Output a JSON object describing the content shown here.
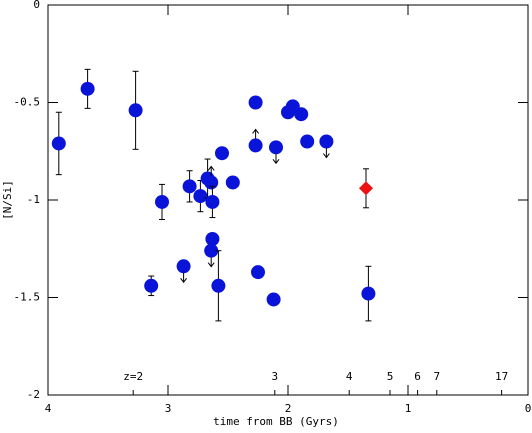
{
  "chart_data": {
    "type": "scatter",
    "xlabel": "time from BB (Gyrs)",
    "ylabel": "[N/Si]",
    "xlim": [
      4,
      0
    ],
    "ylim": [
      -2,
      0
    ],
    "xticks": [
      4,
      3,
      2,
      1,
      0
    ],
    "yticks": [
      0,
      -0.5,
      -1,
      -1.5,
      -2
    ],
    "z_labels": [
      {
        "label": "z=2",
        "x": 3.29
      },
      {
        "label": "3",
        "x": 2.11
      },
      {
        "label": "4",
        "x": 1.49
      },
      {
        "label": "5",
        "x": 1.15
      },
      {
        "label": "6",
        "x": 0.92
      },
      {
        "label": "7",
        "x": 0.76
      },
      {
        "label": "17",
        "x": 0.22
      }
    ],
    "series": [
      {
        "color": "#0a14d8",
        "marker": "circle",
        "x": [
          3.91,
          3.67,
          3.27,
          3.05,
          3.14,
          2.87,
          2.82,
          2.73,
          2.67,
          2.64,
          2.63,
          2.63,
          2.64,
          2.55,
          2.58,
          2.46,
          2.27,
          2.27,
          2.25,
          2.12,
          2.1,
          2.0,
          1.96,
          1.89,
          1.84,
          1.68,
          1.33
        ],
        "values": [
          -0.71,
          -0.43,
          -0.54,
          -1.01,
          -1.44,
          -1.34,
          -0.93,
          -0.98,
          -0.89,
          -0.91,
          -1.01,
          -1.2,
          -1.26,
          -0.76,
          -1.44,
          -0.91,
          -0.5,
          -0.72,
          -1.37,
          -1.51,
          -0.73,
          -0.55,
          -0.52,
          -0.56,
          -0.7,
          -0.7,
          -1.48
        ],
        "errors": [
          0.16,
          0.1,
          0.2,
          0.09,
          0.05,
          null,
          0.08,
          0.08,
          0.1,
          null,
          0.08,
          null,
          null,
          null,
          0.18,
          null,
          null,
          null,
          null,
          null,
          null,
          null,
          null,
          null,
          null,
          null,
          0.14
        ],
        "limits": [
          null,
          null,
          null,
          null,
          null,
          "down",
          null,
          null,
          null,
          "up",
          null,
          null,
          "down",
          null,
          null,
          null,
          null,
          "up",
          null,
          null,
          "down",
          null,
          null,
          null,
          null,
          "down",
          null
        ]
      },
      {
        "color": "#ee1111",
        "marker": "diamond",
        "x": [
          1.35
        ],
        "values": [
          -0.94
        ],
        "errors": [
          0.1
        ],
        "limits": [
          null
        ]
      }
    ]
  }
}
